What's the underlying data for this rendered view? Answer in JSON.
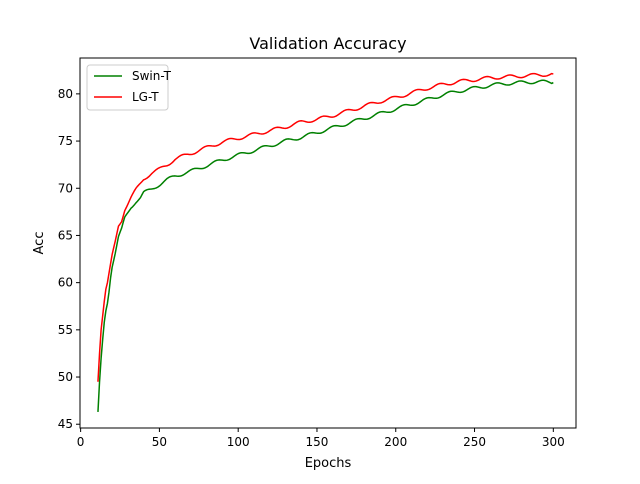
{
  "chart_data": {
    "type": "line",
    "title": "Validation Accuracy",
    "xlabel": "Epochs",
    "ylabel": "Acc",
    "xlim": [
      -0.4,
      314.4
    ],
    "ylim": [
      44.6,
      83.8
    ],
    "xticks": [
      0,
      50,
      100,
      150,
      200,
      250,
      300
    ],
    "yticks": [
      45,
      50,
      55,
      60,
      65,
      70,
      75,
      80
    ],
    "grid": false,
    "legend_position": "upper-left",
    "series": [
      {
        "name": "Swin-T",
        "color": "#008000",
        "x": [
          11,
          12,
          13,
          14,
          15,
          16,
          17,
          18,
          19,
          20,
          22,
          24,
          26,
          28,
          30,
          32,
          35,
          38,
          40,
          45,
          50,
          55,
          60,
          70,
          80,
          90,
          100,
          110,
          120,
          130,
          140,
          150,
          160,
          170,
          180,
          190,
          200,
          210,
          220,
          230,
          240,
          250,
          260,
          270,
          280,
          290,
          300
        ],
        "y": [
          46.3,
          49.5,
          52.0,
          54.0,
          55.8,
          57.0,
          57.8,
          59.0,
          60.5,
          61.8,
          63.2,
          64.8,
          65.6,
          66.8,
          67.4,
          68.0,
          68.6,
          69.0,
          69.5,
          69.9,
          70.4,
          70.9,
          71.3,
          71.8,
          72.4,
          73.0,
          73.5,
          74.0,
          74.5,
          75.0,
          75.4,
          75.9,
          76.4,
          76.9,
          77.4,
          77.9,
          78.4,
          78.9,
          79.4,
          79.9,
          80.3,
          80.6,
          80.9,
          81.1,
          81.2,
          81.3,
          81.2
        ]
      },
      {
        "name": "LG-T",
        "color": "#ff0000",
        "x": [
          11,
          12,
          13,
          14,
          15,
          16,
          17,
          18,
          19,
          20,
          22,
          24,
          26,
          28,
          30,
          32,
          35,
          38,
          40,
          45,
          50,
          55,
          60,
          70,
          80,
          90,
          100,
          110,
          120,
          130,
          140,
          150,
          160,
          170,
          180,
          190,
          200,
          210,
          220,
          230,
          240,
          250,
          260,
          270,
          280,
          290,
          300
        ],
        "y": [
          49.5,
          52.5,
          55.0,
          56.5,
          58.0,
          59.3,
          60.0,
          61.0,
          62.0,
          62.8,
          64.3,
          66.0,
          66.6,
          67.8,
          68.4,
          69.0,
          69.8,
          70.5,
          71.0,
          71.6,
          72.0,
          72.5,
          73.1,
          73.7,
          74.3,
          74.9,
          75.3,
          75.7,
          76.1,
          76.5,
          77.0,
          77.3,
          77.7,
          78.2,
          78.7,
          79.2,
          79.6,
          80.1,
          80.6,
          81.0,
          81.3,
          81.5,
          81.7,
          81.8,
          81.9,
          82.0,
          82.1
        ]
      }
    ]
  }
}
